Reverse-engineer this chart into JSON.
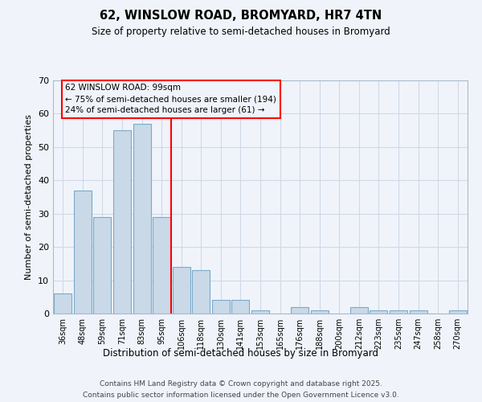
{
  "title1": "62, WINSLOW ROAD, BROMYARD, HR7 4TN",
  "title2": "Size of property relative to semi-detached houses in Bromyard",
  "xlabel": "Distribution of semi-detached houses by size in Bromyard",
  "ylabel": "Number of semi-detached properties",
  "categories": [
    "36sqm",
    "48sqm",
    "59sqm",
    "71sqm",
    "83sqm",
    "95sqm",
    "106sqm",
    "118sqm",
    "130sqm",
    "141sqm",
    "153sqm",
    "165sqm",
    "176sqm",
    "188sqm",
    "200sqm",
    "212sqm",
    "223sqm",
    "235sqm",
    "247sqm",
    "258sqm",
    "270sqm"
  ],
  "values": [
    6,
    37,
    29,
    55,
    57,
    29,
    14,
    13,
    4,
    4,
    1,
    0,
    2,
    1,
    0,
    2,
    1,
    1,
    1,
    0,
    1
  ],
  "bar_color": "#c9d9e8",
  "bar_edge_color": "#7aaac8",
  "grid_color": "#d0d8e8",
  "vline_x": 5.5,
  "vline_color": "red",
  "annotation_title": "62 WINSLOW ROAD: 99sqm",
  "annotation_line1": "← 75% of semi-detached houses are smaller (194)",
  "annotation_line2": "24% of semi-detached houses are larger (61) →",
  "annotation_box_color": "red",
  "ylim": [
    0,
    70
  ],
  "yticks": [
    0,
    10,
    20,
    30,
    40,
    50,
    60,
    70
  ],
  "footnote1": "Contains HM Land Registry data © Crown copyright and database right 2025.",
  "footnote2": "Contains public sector information licensed under the Open Government Licence v3.0.",
  "bg_color": "#f0f4fa"
}
